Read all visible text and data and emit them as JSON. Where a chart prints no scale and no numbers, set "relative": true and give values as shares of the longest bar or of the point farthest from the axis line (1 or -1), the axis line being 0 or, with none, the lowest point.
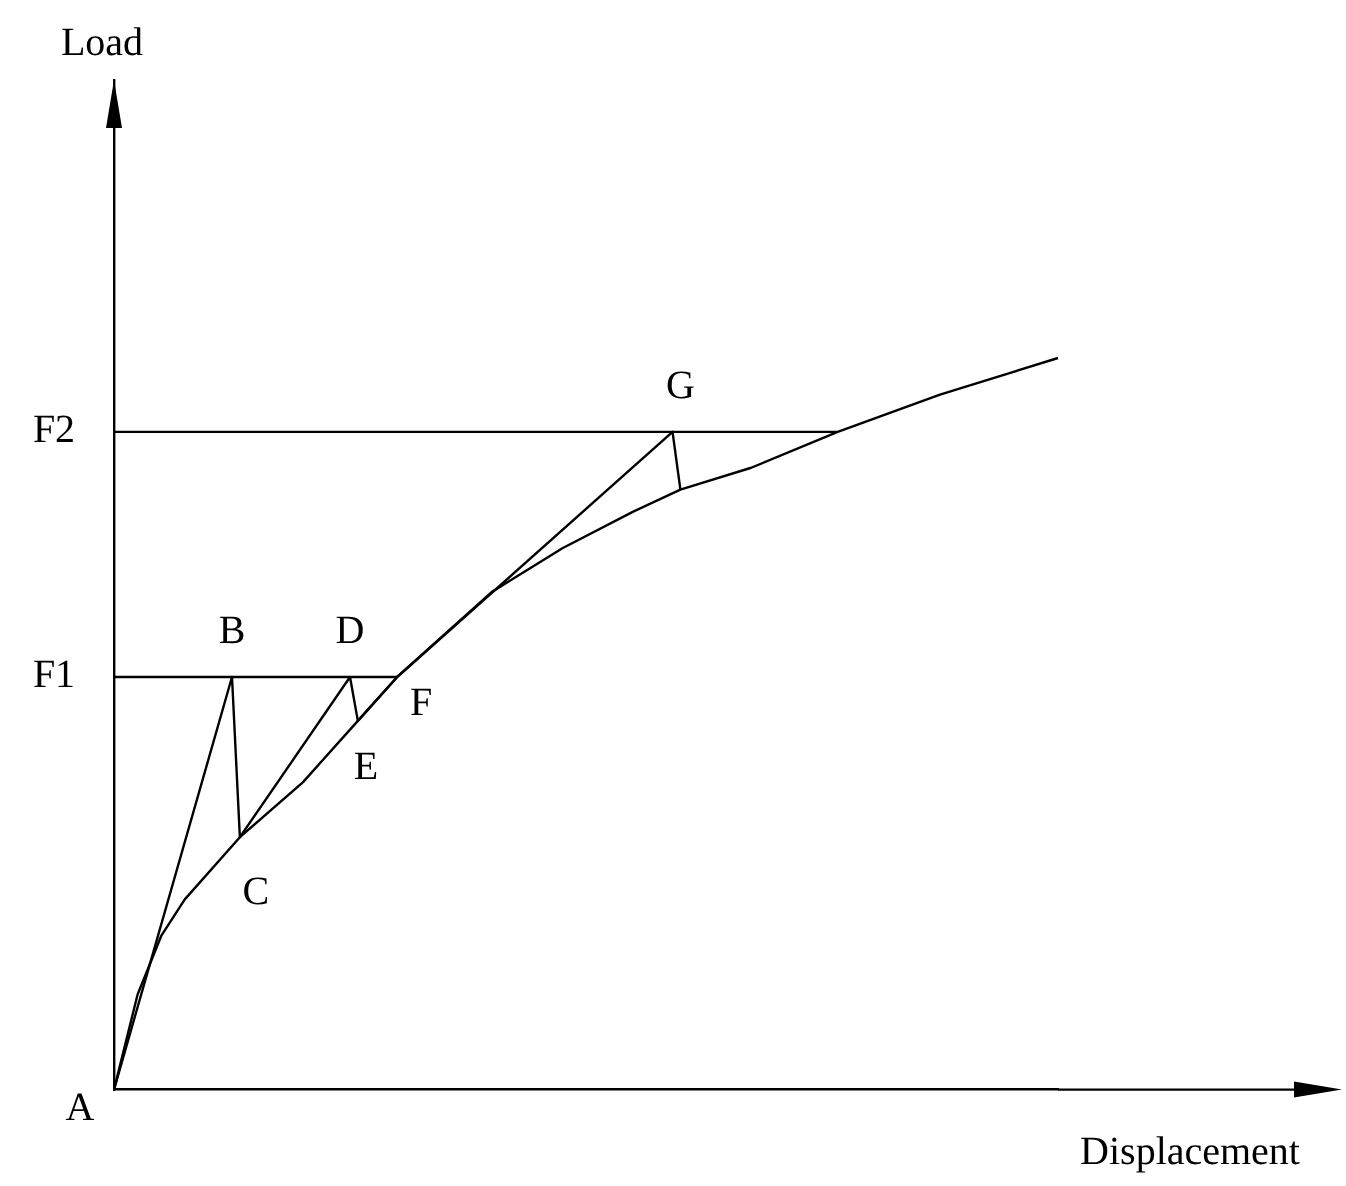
{
  "chart_data": {
    "type": "line",
    "relative": true,
    "xlabel": "Displacement",
    "legend": false,
    "marker": "none",
    "line_style": "solid",
    "categories": [
      null,
      null,
      null,
      null,
      null,
      null,
      null,
      null,
      null,
      null,
      null,
      null,
      null,
      null,
      null,
      null,
      null,
      null,
      null,
      null,
      null,
      null,
      null,
      null,
      null,
      null,
      null,
      null,
      null,
      null,
      null,
      null,
      null,
      null,
      null,
      null,
      null,
      null,
      null,
      null,
      null,
      null,
      null,
      null,
      null,
      null,
      null,
      null,
      null,
      null,
      null,
      null,
      null,
      null,
      null,
      null,
      null,
      null,
      null,
      null,
      null,
      null,
      null,
      null,
      null,
      null,
      null,
      null,
      null,
      null,
      null,
      null,
      null,
      null,
      null,
      null,
      null,
      null,
      null,
      null,
      null,
      null,
      null,
      null,
      null,
      null,
      null,
      null,
      null,
      null,
      null,
      null,
      null,
      null,
      null,
      null,
      null,
      null,
      null,
      null,
      null,
      null,
      null,
      null,
      null,
      null,
      null,
      null,
      null,
      null,
      null,
      null,
      null,
      null,
      null,
      null,
      null,
      null,
      null,
      null,
      null
    ],
    "series": [
      {
        "color": "#000000",
        "values": [
          0,
          null,
          null,
          0.13,
          null,
          null,
          0.21,
          null,
          null,
          0.26,
          null,
          null,
          null,
          null,
          null,
          null,
          0.345,
          null,
          null,
          null,
          null,
          null,
          null,
          null,
          0.42,
          null,
          null,
          null,
          null,
          null,
          null,
          0.504,
          null,
          null,
          null,
          null,
          0.564,
          null,
          null,
          null,
          null,
          null,
          null,
          null,
          null,
          null,
          null,
          null,
          0.68,
          null,
          null,
          null,
          null,
          null,
          null,
          null,
          null,
          0.74,
          null,
          null,
          null,
          null,
          null,
          null,
          null,
          null,
          0.79,
          null,
          null,
          null,
          null,
          null,
          0.82,
          null,
          null,
          null,
          null,
          null,
          null,
          null,
          null,
          0.85,
          null,
          null,
          null,
          null,
          null,
          null,
          null,
          null,
          null,
          null,
          0.899,
          null,
          null,
          null,
          null,
          null,
          null,
          null,
          null,
          null,
          null,
          null,
          null,
          0.95,
          null,
          null,
          null,
          null,
          null,
          null,
          null,
          null,
          null,
          null,
          null,
          null,
          null,
          null,
          1
        ]
      },
      {
        "color": "#000000",
        "values": [
          0,
          null,
          null,
          null,
          null,
          null,
          null,
          null,
          null,
          null,
          null,
          null,
          null,
          null,
          null,
          0.564,
          0.345,
          null,
          null,
          null,
          null,
          null,
          null,
          null,
          null,
          null,
          null,
          null,
          null,
          null,
          0.564,
          0.504,
          null,
          null,
          null,
          null,
          0.564,
          null,
          null,
          null,
          null,
          null,
          null,
          null,
          null,
          null,
          null,
          null,
          null,
          null,
          null,
          null,
          null,
          null,
          null,
          null,
          null,
          null,
          null,
          null,
          null,
          null,
          null,
          null,
          null,
          null,
          null,
          null,
          null,
          null,
          null,
          0.899,
          0.82,
          null,
          null,
          null,
          null,
          null,
          null,
          null,
          null,
          null,
          null,
          null,
          null,
          null,
          null,
          null,
          null,
          null,
          null,
          null,
          null,
          null,
          null,
          null,
          null,
          null,
          null,
          null,
          null,
          null,
          null,
          null,
          null,
          null,
          null,
          null,
          null,
          null,
          null,
          null,
          null,
          null,
          null,
          null,
          null,
          null,
          null,
          null,
          null
        ]
      },
      {
        "color": "#000000",
        "values": [
          0.564,
          null,
          null,
          null,
          null,
          null,
          null,
          null,
          null,
          null,
          null,
          null,
          null,
          null,
          null,
          null,
          null,
          null,
          null,
          null,
          null,
          null,
          null,
          null,
          null,
          null,
          null,
          null,
          null,
          null,
          null,
          null,
          null,
          null,
          null,
          null,
          0.564,
          null,
          null,
          null,
          null,
          null,
          null,
          null,
          null,
          null,
          null,
          null,
          null,
          null,
          null,
          null,
          null,
          null,
          null,
          null,
          null,
          null,
          null,
          null,
          null,
          null,
          null,
          null,
          null,
          null,
          null,
          null,
          null,
          null,
          null,
          null,
          null,
          null,
          null,
          null,
          null,
          null,
          null,
          null,
          null,
          null,
          null,
          null,
          null,
          null,
          null,
          null,
          null,
          null,
          null,
          null,
          null,
          null,
          null,
          null,
          null,
          null,
          null,
          null,
          null,
          null,
          null,
          null,
          null,
          null,
          null,
          null,
          null,
          null,
          null,
          null,
          null,
          null,
          null,
          null,
          null,
          null,
          null,
          null,
          null
        ]
      },
      {
        "color": "#000000",
        "values": [
          0.899,
          null,
          null,
          null,
          null,
          null,
          null,
          null,
          null,
          null,
          null,
          null,
          null,
          null,
          null,
          null,
          null,
          null,
          null,
          null,
          null,
          null,
          null,
          null,
          null,
          null,
          null,
          null,
          null,
          null,
          null,
          null,
          null,
          null,
          null,
          null,
          null,
          null,
          null,
          null,
          null,
          null,
          null,
          null,
          null,
          null,
          null,
          null,
          null,
          null,
          null,
          null,
          null,
          null,
          null,
          null,
          null,
          null,
          null,
          null,
          null,
          null,
          null,
          null,
          null,
          null,
          null,
          null,
          null,
          null,
          null,
          null,
          null,
          null,
          null,
          null,
          null,
          null,
          null,
          null,
          null,
          null,
          null,
          null,
          null,
          null,
          null,
          null,
          null,
          null,
          null,
          null,
          0.899,
          null,
          null,
          null,
          null,
          null,
          null,
          null,
          null,
          null,
          null,
          null,
          null,
          null,
          null,
          null,
          null,
          null,
          null,
          null,
          null,
          null,
          null,
          null,
          null,
          null,
          null,
          null,
          null
        ]
      }
    ],
    "annotations": [
      "Load",
      "F1",
      "F2",
      "A",
      "B",
      "C",
      "D",
      "E",
      "F",
      "G"
    ]
  }
}
